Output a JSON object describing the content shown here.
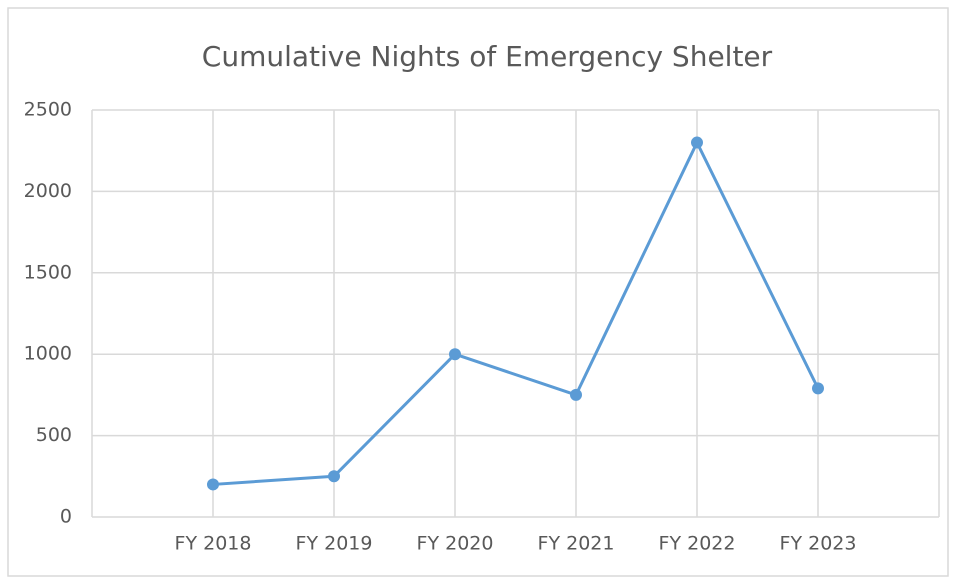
{
  "chart_data": {
    "type": "line",
    "title": "Cumulative Nights of Emergency Shelter",
    "categories": [
      "FY 2018",
      "FY 2019",
      "FY 2020",
      "FY 2021",
      "FY 2022",
      "FY 2023"
    ],
    "values": [
      200,
      250,
      1000,
      750,
      2300,
      790
    ],
    "color": "#5b9bd5",
    "ylim": [
      0,
      2500
    ],
    "yticks": [
      0,
      500,
      1000,
      1500,
      2000,
      2500
    ],
    "grid": true
  }
}
